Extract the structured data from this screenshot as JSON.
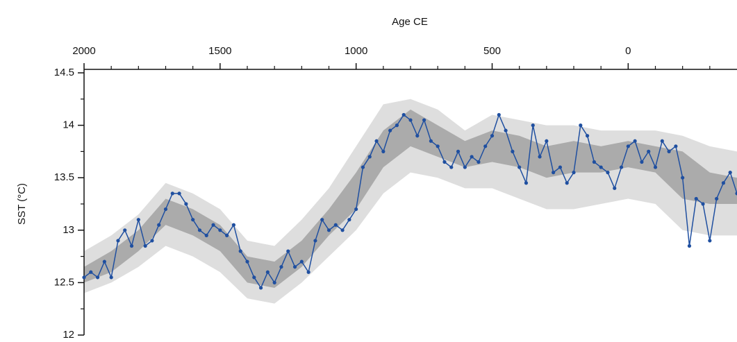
{
  "chart_data": {
    "type": "line",
    "x_label": "Age CE",
    "y_label": "SST (°C)",
    "xlim": [
      2000,
      -400
    ],
    "xticks": [
      2000,
      1500,
      1000,
      500,
      0
    ],
    "xminorticks": [
      1900,
      1800,
      1700,
      1600,
      1400,
      1300,
      1200,
      1100,
      900,
      800,
      700,
      600,
      400,
      300,
      200,
      100,
      -100,
      -200,
      -300
    ],
    "ylim": [
      12,
      14.5
    ],
    "yticks": [
      12,
      12.5,
      13,
      13.5,
      14,
      14.5
    ],
    "yminorticks": [
      12.25,
      12.75,
      13.25,
      13.75,
      14.25
    ],
    "bands": [
      {
        "color": "#dedede",
        "x": [
          2000,
          1900,
          1800,
          1700,
          1600,
          1500,
          1400,
          1300,
          1200,
          1100,
          1000,
          900,
          800,
          700,
          600,
          500,
          400,
          300,
          200,
          100,
          0,
          -100,
          -200,
          -300,
          -400
        ],
        "lower": [
          12.4,
          12.5,
          12.65,
          12.85,
          12.75,
          12.6,
          12.35,
          12.3,
          12.5,
          12.75,
          13.0,
          13.35,
          13.55,
          13.5,
          13.4,
          13.4,
          13.3,
          13.2,
          13.2,
          13.25,
          13.3,
          13.25,
          13.0,
          12.95,
          12.95
        ],
        "upper": [
          12.8,
          12.95,
          13.15,
          13.45,
          13.35,
          13.2,
          12.9,
          12.85,
          13.1,
          13.4,
          13.8,
          14.2,
          14.25,
          14.15,
          13.95,
          14.1,
          14.05,
          14.0,
          14.0,
          13.95,
          13.95,
          13.95,
          13.9,
          13.8,
          13.75
        ]
      },
      {
        "color": "#ababab",
        "x": [
          2000,
          1900,
          1800,
          1700,
          1600,
          1500,
          1400,
          1300,
          1200,
          1100,
          1000,
          900,
          800,
          700,
          600,
          500,
          400,
          300,
          200,
          100,
          0,
          -100,
          -200,
          -300,
          -400
        ],
        "lower": [
          12.5,
          12.6,
          12.8,
          13.05,
          12.95,
          12.8,
          12.5,
          12.45,
          12.65,
          12.95,
          13.2,
          13.6,
          13.8,
          13.7,
          13.6,
          13.65,
          13.6,
          13.5,
          13.55,
          13.55,
          13.6,
          13.55,
          13.3,
          13.25,
          13.25
        ],
        "upper": [
          12.65,
          12.8,
          13.0,
          13.3,
          13.2,
          13.05,
          12.75,
          12.7,
          12.9,
          13.2,
          13.55,
          13.95,
          14.15,
          14.0,
          13.85,
          13.95,
          13.9,
          13.8,
          13.85,
          13.8,
          13.85,
          13.8,
          13.75,
          13.55,
          13.5
        ]
      }
    ],
    "series": [
      {
        "color": "#1f4fa0",
        "x": [
          2000,
          1975,
          1950,
          1925,
          1900,
          1875,
          1850,
          1825,
          1800,
          1775,
          1750,
          1725,
          1700,
          1675,
          1650,
          1625,
          1600,
          1575,
          1550,
          1525,
          1500,
          1475,
          1450,
          1425,
          1400,
          1375,
          1350,
          1325,
          1300,
          1275,
          1250,
          1225,
          1200,
          1175,
          1150,
          1125,
          1100,
          1075,
          1050,
          1025,
          1000,
          975,
          950,
          925,
          900,
          875,
          850,
          825,
          800,
          775,
          750,
          725,
          700,
          675,
          650,
          625,
          600,
          575,
          550,
          525,
          500,
          475,
          450,
          425,
          400,
          375,
          350,
          325,
          300,
          275,
          250,
          225,
          200,
          175,
          150,
          125,
          100,
          75,
          50,
          25,
          0,
          -25,
          -50,
          -75,
          -100,
          -125,
          -150,
          -175,
          -200,
          -225,
          -250,
          -275,
          -300,
          -325,
          -350,
          -375,
          -400
        ],
        "values": [
          12.55,
          12.6,
          12.55,
          12.7,
          12.55,
          12.9,
          13.0,
          12.85,
          13.1,
          12.85,
          12.9,
          13.05,
          13.2,
          13.35,
          13.35,
          13.25,
          13.1,
          13.0,
          12.95,
          13.05,
          13.0,
          12.95,
          13.05,
          12.8,
          12.7,
          12.55,
          12.45,
          12.6,
          12.5,
          12.65,
          12.8,
          12.65,
          12.7,
          12.6,
          12.9,
          13.1,
          13.0,
          13.05,
          13.0,
          13.1,
          13.2,
          13.6,
          13.7,
          13.85,
          13.75,
          13.95,
          14.0,
          14.1,
          14.05,
          13.9,
          14.05,
          13.85,
          13.8,
          13.65,
          13.6,
          13.75,
          13.6,
          13.7,
          13.65,
          13.8,
          13.9,
          14.1,
          13.95,
          13.75,
          13.6,
          13.45,
          14.0,
          13.7,
          13.85,
          13.55,
          13.6,
          13.45,
          13.55,
          14.0,
          13.9,
          13.65,
          13.6,
          13.55,
          13.4,
          13.6,
          13.8,
          13.85,
          13.65,
          13.75,
          13.6,
          13.85,
          13.75,
          13.8,
          13.5,
          12.85,
          13.3,
          13.25,
          12.9,
          13.3,
          13.45,
          13.55,
          13.35
        ]
      }
    ]
  }
}
